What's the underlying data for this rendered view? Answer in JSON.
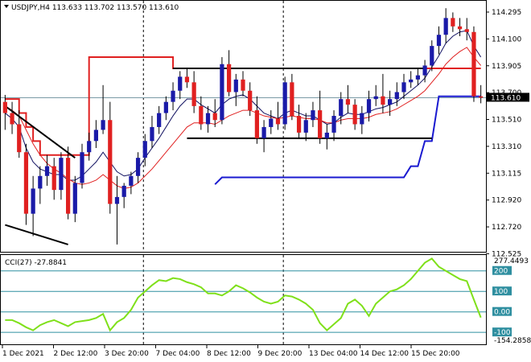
{
  "header": {
    "symbol_line": "USDJPY,H4  113.633 113.702 113.570 113.610",
    "indicator_line": "CCI(27) -27.8841"
  },
  "colors": {
    "bull": "#1a1aa8",
    "bear": "#e02020",
    "wick": "#000000",
    "ma_fast": "#101060",
    "ma_slow": "#e02020",
    "resistance": "#e02020",
    "support": "#1a1ad0",
    "box": "#000000",
    "cci": "#7fe01a",
    "level": "#2f8fa0",
    "badge": "#000000"
  },
  "chart_data": [
    {
      "type": "candlestick",
      "title": "USDJPY,H4",
      "ohlc_readout": {
        "open": 113.633,
        "high": 113.702,
        "low": 113.57,
        "close": 113.61
      },
      "current_price_label": "113.610",
      "ylim": [
        112.525,
        114.28
      ],
      "y_ticks": [
        "114.295",
        "114.100",
        "113.905",
        "113.700",
        "113.510",
        "113.310",
        "113.115",
        "112.920",
        "112.720",
        "112.525"
      ],
      "x_labels": [
        "1 Dec 2021",
        "2 Dec 12:00",
        "3 Dec 20:00",
        "7 Dec 04:00",
        "8 Dec 12:00",
        "9 Dec 20:00",
        "13 Dec 04:00",
        "14 Dec 12:00",
        "15 Dec 20:00"
      ],
      "candles": [
        [
          113.58,
          113.63,
          113.38,
          113.5
        ],
        [
          113.5,
          113.58,
          113.35,
          113.42
        ],
        [
          113.42,
          113.52,
          113.18,
          113.22
        ],
        [
          113.22,
          113.28,
          112.7,
          112.78
        ],
        [
          112.78,
          113.05,
          112.62,
          112.96
        ],
        [
          112.96,
          113.12,
          112.85,
          113.05
        ],
        [
          113.05,
          113.2,
          112.98,
          113.12
        ],
        [
          113.12,
          113.18,
          112.88,
          112.95
        ],
        [
          112.95,
          113.22,
          112.88,
          113.18
        ],
        [
          113.18,
          113.26,
          112.74,
          112.78
        ],
        [
          112.78,
          113.05,
          112.72,
          113.0
        ],
        [
          113.0,
          113.28,
          112.96,
          113.22
        ],
        [
          113.22,
          113.36,
          113.16,
          113.3
        ],
        [
          113.3,
          113.45,
          113.25,
          113.38
        ],
        [
          113.38,
          113.7,
          113.35,
          113.45
        ],
        [
          113.45,
          113.58,
          112.78,
          112.85
        ],
        [
          112.85,
          113.05,
          112.56,
          112.9
        ],
        [
          112.9,
          113.0,
          112.82,
          112.98
        ],
        [
          112.98,
          113.08,
          112.92,
          113.05
        ],
        [
          113.05,
          113.22,
          113.0,
          113.18
        ],
        [
          113.18,
          113.35,
          113.12,
          113.3
        ],
        [
          113.3,
          113.48,
          113.25,
          113.4
        ],
        [
          113.4,
          113.55,
          113.35,
          113.5
        ],
        [
          113.5,
          113.62,
          113.45,
          113.58
        ],
        [
          113.58,
          113.72,
          113.52,
          113.66
        ],
        [
          113.66,
          113.8,
          113.6,
          113.76
        ],
        [
          113.76,
          113.82,
          113.68,
          113.72
        ],
        [
          113.72,
          113.8,
          113.5,
          113.55
        ],
        [
          113.55,
          113.62,
          113.38,
          113.42
        ],
        [
          113.42,
          113.55,
          113.36,
          113.5
        ],
        [
          113.5,
          113.6,
          113.4,
          113.45
        ],
        [
          113.45,
          113.9,
          113.42,
          113.85
        ],
        [
          113.85,
          113.95,
          113.62,
          113.65
        ],
        [
          113.65,
          113.78,
          113.55,
          113.74
        ],
        [
          113.74,
          113.8,
          113.62,
          113.66
        ],
        [
          113.66,
          113.72,
          113.48,
          113.52
        ],
        [
          113.52,
          113.62,
          113.28,
          113.32
        ],
        [
          113.32,
          113.45,
          113.22,
          113.4
        ],
        [
          113.4,
          113.52,
          113.35,
          113.46
        ],
        [
          113.46,
          113.58,
          113.38,
          113.42
        ],
        [
          113.42,
          113.76,
          113.38,
          113.72
        ],
        [
          113.72,
          113.78,
          113.45,
          113.48
        ],
        [
          113.48,
          113.56,
          113.32,
          113.36
        ],
        [
          113.36,
          113.5,
          113.3,
          113.45
        ],
        [
          113.45,
          113.58,
          113.4,
          113.52
        ],
        [
          113.52,
          113.66,
          113.28,
          113.32
        ],
        [
          113.32,
          113.42,
          113.24,
          113.36
        ],
        [
          113.36,
          113.52,
          113.3,
          113.48
        ],
        [
          113.48,
          113.65,
          113.42,
          113.6
        ],
        [
          113.6,
          113.7,
          113.5,
          113.56
        ],
        [
          113.56,
          113.6,
          113.38,
          113.42
        ],
        [
          113.42,
          113.55,
          113.35,
          113.5
        ],
        [
          113.5,
          113.66,
          113.44,
          113.6
        ],
        [
          113.6,
          113.7,
          113.55,
          113.62
        ],
        [
          113.62,
          113.78,
          113.5,
          113.56
        ],
        [
          113.56,
          113.66,
          113.48,
          113.6
        ],
        [
          113.6,
          113.72,
          113.55,
          113.65
        ],
        [
          113.65,
          113.78,
          113.6,
          113.72
        ],
        [
          113.72,
          113.8,
          113.68,
          113.74
        ],
        [
          113.74,
          113.82,
          113.7,
          113.77
        ],
        [
          113.77,
          113.88,
          113.72,
          113.84
        ],
        [
          113.84,
          114.02,
          113.8,
          113.98
        ],
        [
          113.98,
          114.12,
          113.92,
          114.06
        ],
        [
          114.06,
          114.25,
          114.0,
          114.18
        ],
        [
          114.18,
          114.22,
          114.08,
          114.12
        ],
        [
          114.12,
          114.18,
          114.05,
          114.1
        ],
        [
          114.1,
          114.18,
          114.02,
          114.08
        ],
        [
          114.08,
          114.12,
          113.58,
          113.62
        ],
        [
          113.62,
          113.7,
          113.57,
          113.61
        ]
      ],
      "series": [
        {
          "name": "",
          "kind": "ma_fast",
          "values": [
            113.5,
            113.46,
            113.4,
            113.25,
            113.15,
            113.1,
            113.08,
            113.06,
            113.06,
            113.02,
            113.02,
            113.05,
            113.1,
            113.15,
            113.22,
            113.15,
            113.08,
            113.05,
            113.06,
            113.1,
            113.18,
            113.25,
            113.32,
            113.4,
            113.48,
            113.55,
            113.6,
            113.6,
            113.56,
            113.53,
            113.5,
            113.56,
            113.6,
            113.62,
            113.63,
            113.6,
            113.55,
            113.5,
            113.48,
            113.46,
            113.5,
            113.52,
            113.5,
            113.48,
            113.48,
            113.45,
            113.42,
            113.43,
            113.47,
            113.5,
            113.49,
            113.49,
            113.51,
            113.53,
            113.54,
            113.56,
            113.58,
            113.62,
            113.66,
            113.7,
            113.75,
            113.83,
            113.91,
            114.0,
            114.05,
            114.08,
            114.09,
            113.98,
            113.9
          ]
        },
        {
          "name": "",
          "kind": "ma_slow",
          "values": [
            113.55,
            113.52,
            113.48,
            113.38,
            113.28,
            113.2,
            113.14,
            113.1,
            113.07,
            113.03,
            113.0,
            112.99,
            113.0,
            113.02,
            113.06,
            113.02,
            112.98,
            112.96,
            112.97,
            113.0,
            113.05,
            113.1,
            113.16,
            113.22,
            113.28,
            113.34,
            113.4,
            113.43,
            113.43,
            113.43,
            113.42,
            113.45,
            113.48,
            113.5,
            113.52,
            113.52,
            113.5,
            113.48,
            113.47,
            113.46,
            113.47,
            113.48,
            113.47,
            113.46,
            113.46,
            113.45,
            113.43,
            113.43,
            113.45,
            113.46,
            113.46,
            113.46,
            113.47,
            113.49,
            113.5,
            113.51,
            113.53,
            113.56,
            113.59,
            113.62,
            113.66,
            113.72,
            113.78,
            113.85,
            113.9,
            113.94,
            113.97,
            113.9,
            113.84
          ]
        },
        {
          "name": "",
          "kind": "resistance_step",
          "values": [
            113.6,
            113.6,
            113.5,
            113.4,
            113.3,
            113.2,
            113.2,
            113.2,
            113.2,
            113.2,
            113.2,
            113.2,
            113.9,
            113.9,
            113.9,
            113.9,
            113.9,
            113.9,
            113.9,
            113.9,
            113.9,
            113.9,
            113.9,
            113.9,
            113.82,
            113.82,
            113.82,
            113.82,
            113.82,
            113.82,
            113.82,
            113.82,
            113.82,
            113.82,
            113.82,
            113.82,
            113.82,
            113.82,
            113.82,
            113.82,
            113.82,
            113.82,
            113.82,
            113.82,
            113.82,
            113.82,
            113.82,
            113.82,
            113.82,
            113.82,
            113.82,
            113.82,
            113.82,
            113.82,
            113.82,
            113.82,
            113.82,
            113.82,
            113.82,
            113.82,
            113.82,
            113.82,
            113.82,
            113.82,
            113.82,
            113.82,
            113.82,
            113.82,
            113.82
          ]
        },
        {
          "name": "",
          "kind": "support_step",
          "values": [
            null,
            null,
            null,
            null,
            null,
            null,
            null,
            null,
            null,
            null,
            null,
            null,
            null,
            null,
            null,
            null,
            null,
            null,
            null,
            null,
            null,
            null,
            null,
            null,
            null,
            null,
            null,
            null,
            null,
            null,
            112.99,
            113.04,
            113.04,
            113.04,
            113.04,
            113.04,
            113.04,
            113.04,
            113.04,
            113.04,
            113.04,
            113.04,
            113.04,
            113.04,
            113.04,
            113.04,
            113.04,
            113.04,
            113.04,
            113.04,
            113.04,
            113.04,
            113.04,
            113.04,
            113.04,
            113.04,
            113.04,
            113.04,
            113.12,
            113.12,
            113.3,
            113.3,
            113.62,
            113.62,
            113.62,
            113.62,
            113.62,
            113.62,
            113.62
          ]
        }
      ],
      "trendlines": [
        {
          "from": [
            0,
            113.55
          ],
          "to": [
            10,
            113.18
          ]
        },
        {
          "from": [
            0,
            112.7
          ],
          "to": [
            9,
            112.56
          ]
        },
        {
          "from": [
            24,
            113.82
          ],
          "to": [
            60,
            113.82
          ]
        },
        {
          "from": [
            26,
            113.32
          ],
          "to": [
            61,
            113.32
          ]
        }
      ]
    },
    {
      "type": "line",
      "title": "CCI(27)",
      "readout": -27.8841,
      "ylim": [
        -154.2858,
        277.4493
      ],
      "y_ticks": [
        "277.4493",
        "200",
        "100",
        "0.00",
        "-100",
        "-154.2858"
      ],
      "levels": [
        200,
        100,
        0,
        -100
      ],
      "series": [
        {
          "name": "",
          "values": [
            -40,
            -40,
            -55,
            -75,
            -90,
            -65,
            -50,
            -40,
            -55,
            -70,
            -50,
            -45,
            -40,
            -30,
            -10,
            -90,
            -50,
            -30,
            10,
            70,
            100,
            130,
            155,
            150,
            165,
            160,
            145,
            135,
            120,
            90,
            90,
            80,
            100,
            130,
            115,
            95,
            70,
            50,
            40,
            50,
            80,
            75,
            60,
            40,
            10,
            -55,
            -90,
            -60,
            -30,
            40,
            60,
            30,
            -20,
            40,
            70,
            100,
            110,
            130,
            160,
            200,
            240,
            260,
            220,
            200,
            180,
            160,
            150,
            60,
            -27.88
          ]
        }
      ]
    }
  ]
}
